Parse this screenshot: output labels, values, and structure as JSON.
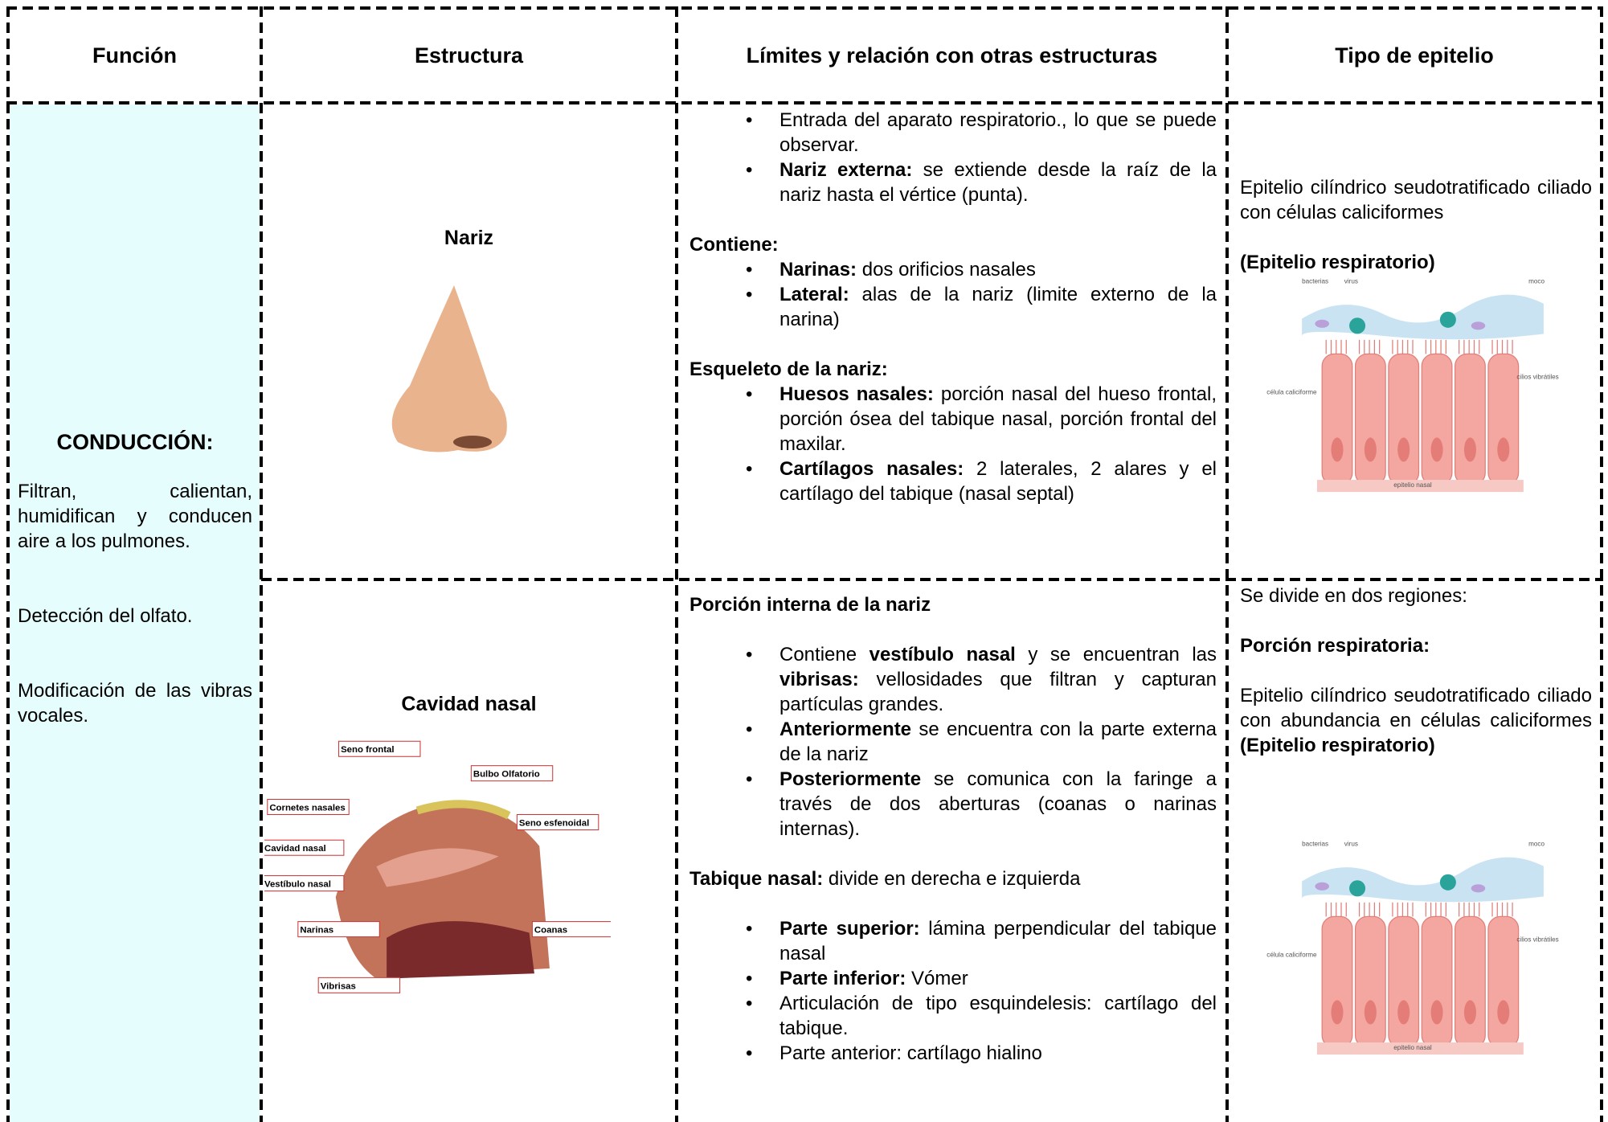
{
  "table": {
    "headers": [
      "Función",
      "Estructura",
      "Límites y relación con otras estructuras",
      "Tipo de epitelio"
    ],
    "funcion": {
      "title": "CONDUCCIÓN:",
      "items": [
        "Filtran, calientan, humidifican y conducen aire a los pulmones.",
        "Detección del olfato.",
        "Modificación de las vibras vocales."
      ]
    },
    "rows": [
      {
        "structure": "Nariz",
        "limits": [
          {
            "bullet": true,
            "runs": [
              {
                "text": "Entrada del aparato respiratorio., lo que se puede observar."
              }
            ]
          },
          {
            "bullet": true,
            "runs": [
              {
                "text": "Nariz externa:",
                "bold": true
              },
              {
                "text": " se extiende desde la raíz de la nariz hasta el vértice (punta)."
              }
            ]
          },
          {
            "runs": [
              {
                "text": "Contiene:",
                "bold": true
              }
            ]
          },
          {
            "bullet": true,
            "runs": [
              {
                "text": "Narinas:",
                "bold": true
              },
              {
                "text": " dos orificios nasales"
              }
            ]
          },
          {
            "bullet": true,
            "runs": [
              {
                "text": "Lateral:",
                "bold": true
              },
              {
                "text": " alas de la nariz (limite externo de la narina)"
              }
            ]
          },
          {
            "runs": [
              {
                "text": "Esqueleto de la nariz:",
                "bold": true
              }
            ]
          },
          {
            "bullet": true,
            "runs": [
              {
                "text": "Huesos nasales:",
                "bold": true
              },
              {
                "text": " porción nasal del hueso frontal, porción ósea del tabique nasal, porción frontal del maxilar."
              }
            ]
          },
          {
            "bullet": true,
            "runs": [
              {
                "text": "Cartílagos nasales:",
                "bold": true
              },
              {
                "text": " 2 laterales, 2 alares y el cartílago del tabique (nasal septal)"
              }
            ]
          }
        ],
        "epitelio": [
          {
            "runs": [
              {
                "text": "Epitelio cilíndrico seudotratificado ciliado con células caliciformes"
              }
            ]
          },
          {
            "runs": [
              {
                "text": "(Epitelio respiratorio)",
                "bold": true
              }
            ]
          }
        ],
        "epitelio_labels": [
          "bacterias",
          "virus",
          "moco",
          "cilios vibrátiles",
          "célula caliciforme",
          "epitelio nasal"
        ]
      },
      {
        "structure": "Cavidad nasal",
        "diagram_labels": [
          "Seno frontal",
          "Bulbo Olfatorio",
          "Cornetes nasales",
          "Seno esfenoidal",
          "Cavidad nasal",
          "Vestíbulo nasal",
          "Narinas",
          "Coanas",
          "Vibrisas"
        ],
        "limits": [
          {
            "runs": [
              {
                "text": "Porción interna de la nariz",
                "bold": true
              }
            ]
          },
          {
            "bullet": true,
            "runs": [
              {
                "text": "Contiene "
              },
              {
                "text": "vestíbulo nasal",
                "bold": true
              },
              {
                "text": " y se encuentran las "
              },
              {
                "text": "vibrisas:",
                "bold": true
              },
              {
                "text": " vellosidades que filtran y capturan partículas grandes."
              }
            ]
          },
          {
            "bullet": true,
            "runs": [
              {
                "text": "Anteriormente",
                "bold": true
              },
              {
                "text": " se encuentra con la parte externa de la nariz"
              }
            ]
          },
          {
            "bullet": true,
            "runs": [
              {
                "text": "Posteriormente",
                "bold": true
              },
              {
                "text": " se comunica con la faringe a través de dos aberturas (coanas o narinas internas)."
              }
            ]
          },
          {
            "runs": [
              {
                "text": "Tabique nasal:",
                "bold": true
              },
              {
                "text": " divide en derecha e izquierda"
              }
            ]
          },
          {
            "bullet": true,
            "runs": [
              {
                "text": "Parte superior:",
                "bold": true
              },
              {
                "text": " lámina perpendicular del tabique nasal"
              }
            ]
          },
          {
            "bullet": true,
            "runs": [
              {
                "text": "Parte inferior:",
                "bold": true
              },
              {
                "text": "  Vómer"
              }
            ]
          },
          {
            "bullet": true,
            "runs": [
              {
                "text": "Articulación de tipo esquindelesis: cartílago del tabique."
              }
            ]
          },
          {
            "bullet": true,
            "runs": [
              {
                "text": "Parte anterior: cartílago hialino"
              }
            ]
          }
        ],
        "epitelio": [
          {
            "runs": [
              {
                "text": "Se divide en dos regiones:"
              }
            ]
          },
          {
            "runs": [
              {
                "text": "Porción respiratoria:",
                "bold": true
              }
            ]
          },
          {
            "runs": [
              {
                "text": "Epitelio cilíndrico seudotratificado ciliado con abundancia en células caliciformes "
              },
              {
                "text": "(Epitelio respiratorio)",
                "bold": true
              }
            ]
          }
        ],
        "epitelio_labels": [
          "bacterias",
          "virus",
          "moco",
          "cilios vibrátiles",
          "célula caliciforme",
          "epitelio nasal"
        ]
      }
    ]
  }
}
